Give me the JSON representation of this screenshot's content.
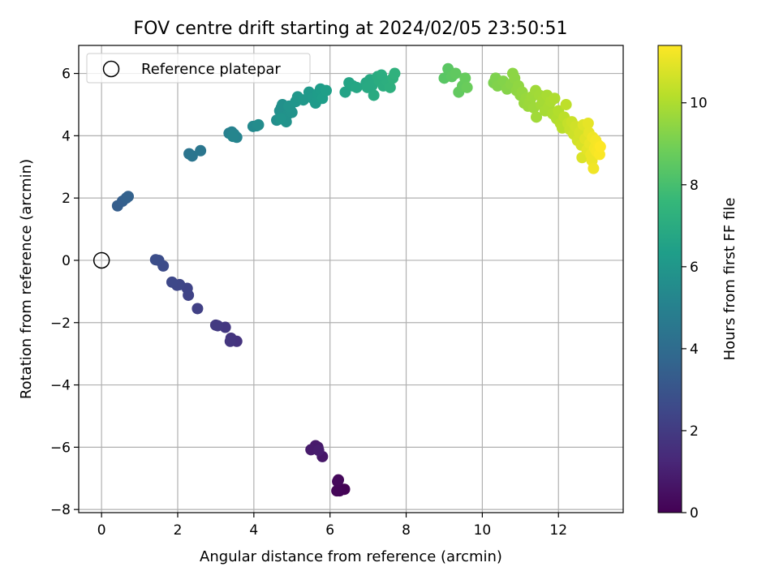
{
  "chart_data": {
    "type": "scatter",
    "title": "FOV centre drift starting at 2024/02/05 23:50:51",
    "xlabel": "Angular distance from reference (arcmin)",
    "ylabel": "Rotation from reference (arcmin)",
    "xlim": [
      -0.6,
      13.7
    ],
    "ylim": [
      -8.1,
      6.9
    ],
    "xticks": [
      0,
      2,
      4,
      6,
      8,
      10,
      12
    ],
    "yticks": [
      -8,
      -6,
      -4,
      -2,
      0,
      2,
      4,
      6
    ],
    "grid": true,
    "legend": {
      "placement": "top-left",
      "entries": [
        "Reference platepar"
      ]
    },
    "reference_point": {
      "x": 0,
      "y": 0,
      "label": "Reference platepar"
    },
    "colorbar": {
      "label": "Hours from first FF file",
      "colormap": "viridis",
      "range": [
        0,
        11.4
      ],
      "ticks": [
        0,
        2,
        4,
        6,
        8,
        10
      ]
    },
    "colormap_stops": [
      "#440154",
      "#482878",
      "#3e4989",
      "#31688e",
      "#26828e",
      "#1f9e89",
      "#35b779",
      "#6ece58",
      "#b5de2b",
      "#fde725"
    ],
    "points": [
      [
        6.38,
        -7.35,
        0.05
      ],
      [
        6.25,
        -7.4,
        0.1
      ],
      [
        6.18,
        -7.4,
        0.15
      ],
      [
        6.2,
        -7.1,
        0.2
      ],
      [
        6.22,
        -7.05,
        0.25
      ],
      [
        5.8,
        -6.3,
        0.7
      ],
      [
        5.68,
        -6.0,
        0.75
      ],
      [
        5.62,
        -5.95,
        0.8
      ],
      [
        5.5,
        -6.08,
        0.85
      ],
      [
        5.7,
        -6.1,
        0.9
      ],
      [
        3.55,
        -2.6,
        1.7
      ],
      [
        3.4,
        -2.5,
        1.75
      ],
      [
        3.38,
        -2.6,
        1.8
      ],
      [
        3.25,
        -2.15,
        1.85
      ],
      [
        3.05,
        -2.1,
        1.9
      ],
      [
        3.0,
        -2.08,
        1.95
      ],
      [
        2.52,
        -1.55,
        2.2
      ],
      [
        2.28,
        -1.12,
        2.3
      ],
      [
        2.25,
        -0.9,
        2.35
      ],
      [
        2.05,
        -0.78,
        2.4
      ],
      [
        1.98,
        -0.8,
        2.45
      ],
      [
        1.85,
        -0.7,
        2.5
      ],
      [
        1.62,
        -0.18,
        2.65
      ],
      [
        1.5,
        0.0,
        2.7
      ],
      [
        1.42,
        0.02,
        2.75
      ],
      [
        0.42,
        1.75,
        3.4
      ],
      [
        0.55,
        1.9,
        3.45
      ],
      [
        0.65,
        2.0,
        3.5
      ],
      [
        0.7,
        2.05,
        3.55
      ],
      [
        2.3,
        3.42,
        4.4
      ],
      [
        2.38,
        3.35,
        4.45
      ],
      [
        2.6,
        3.52,
        4.5
      ],
      [
        3.35,
        4.08,
        4.95
      ],
      [
        3.42,
        4.12,
        5.0
      ],
      [
        3.5,
        4.0,
        5.05
      ],
      [
        3.55,
        3.95,
        5.1
      ],
      [
        3.48,
        4.05,
        5.15
      ],
      [
        3.45,
        3.98,
        5.2
      ],
      [
        3.98,
        4.3,
        5.4
      ],
      [
        4.08,
        4.32,
        5.45
      ],
      [
        4.12,
        4.35,
        5.5
      ],
      [
        4.6,
        4.5,
        5.6
      ],
      [
        4.68,
        4.8,
        5.65
      ],
      [
        4.72,
        4.9,
        5.7
      ],
      [
        4.75,
        5.0,
        5.72
      ],
      [
        4.8,
        4.6,
        5.75
      ],
      [
        4.85,
        4.45,
        5.78
      ],
      [
        4.9,
        4.7,
        5.8
      ],
      [
        4.95,
        4.85,
        5.82
      ],
      [
        5.0,
        4.75,
        5.85
      ],
      [
        4.92,
        4.95,
        5.88
      ],
      [
        4.7,
        4.55,
        5.9
      ],
      [
        5.1,
        5.1,
        5.95
      ],
      [
        5.15,
        5.25,
        6.0
      ],
      [
        5.3,
        5.15,
        6.05
      ],
      [
        5.45,
        5.4,
        6.1
      ],
      [
        5.55,
        5.2,
        6.15
      ],
      [
        5.62,
        5.05,
        6.2
      ],
      [
        5.68,
        5.35,
        6.25
      ],
      [
        5.75,
        5.5,
        6.3
      ],
      [
        5.8,
        5.2,
        6.35
      ],
      [
        5.9,
        5.45,
        6.4
      ],
      [
        6.4,
        5.4,
        6.6
      ],
      [
        6.5,
        5.7,
        6.65
      ],
      [
        6.6,
        5.6,
        6.7
      ],
      [
        6.7,
        5.55,
        6.75
      ],
      [
        6.95,
        5.7,
        6.8
      ],
      [
        7.05,
        5.8,
        6.85
      ],
      [
        7.1,
        5.6,
        6.9
      ],
      [
        7.15,
        5.3,
        6.95
      ],
      [
        7.25,
        5.9,
        7.0
      ],
      [
        7.3,
        5.75,
        7.05
      ],
      [
        7.4,
        5.6,
        7.1
      ],
      [
        7.5,
        5.75,
        7.15
      ],
      [
        7.58,
        5.55,
        7.2
      ],
      [
        7.65,
        5.85,
        7.25
      ],
      [
        7.7,
        6.0,
        7.3
      ],
      [
        7.35,
        5.95,
        7.08
      ],
      [
        6.98,
        5.55,
        6.88
      ],
      [
        9.0,
        5.85,
        8.4
      ],
      [
        9.1,
        6.15,
        8.45
      ],
      [
        9.2,
        5.9,
        8.5
      ],
      [
        9.3,
        6.0,
        8.55
      ],
      [
        9.38,
        5.4,
        8.6
      ],
      [
        9.48,
        5.6,
        8.65
      ],
      [
        9.55,
        5.85,
        8.7
      ],
      [
        9.6,
        5.55,
        8.75
      ],
      [
        10.3,
        5.7,
        9.1
      ],
      [
        10.35,
        5.85,
        9.15
      ],
      [
        10.4,
        5.6,
        9.2
      ],
      [
        10.55,
        5.75,
        9.25
      ],
      [
        10.65,
        5.5,
        9.3
      ],
      [
        10.75,
        5.65,
        9.35
      ],
      [
        10.8,
        6.0,
        9.4
      ],
      [
        10.85,
        5.85,
        9.42
      ],
      [
        10.9,
        5.45,
        9.45
      ],
      [
        10.95,
        5.6,
        9.48
      ],
      [
        11.0,
        5.3,
        9.5
      ],
      [
        11.05,
        5.4,
        9.55
      ],
      [
        11.1,
        5.05,
        9.6
      ],
      [
        11.15,
        5.2,
        9.62
      ],
      [
        11.2,
        4.95,
        9.65
      ],
      [
        11.25,
        5.1,
        9.68
      ],
      [
        11.3,
        5.25,
        9.7
      ],
      [
        11.35,
        4.9,
        9.72
      ],
      [
        11.4,
        5.45,
        9.75
      ],
      [
        11.42,
        4.6,
        9.78
      ],
      [
        11.5,
        5.3,
        9.8
      ],
      [
        11.55,
        5.0,
        9.82
      ],
      [
        11.6,
        5.15,
        9.85
      ],
      [
        11.65,
        4.8,
        9.88
      ],
      [
        11.7,
        5.3,
        9.9
      ],
      [
        11.75,
        4.95,
        9.92
      ],
      [
        11.8,
        5.1,
        9.95
      ],
      [
        11.85,
        4.7,
        9.98
      ],
      [
        11.9,
        5.2,
        10.0
      ],
      [
        11.95,
        4.55,
        10.05
      ],
      [
        12.0,
        4.8,
        10.1
      ],
      [
        12.05,
        4.4,
        10.15
      ],
      [
        12.1,
        4.25,
        10.2
      ],
      [
        12.15,
        4.6,
        10.25
      ],
      [
        12.2,
        5.0,
        10.3
      ],
      [
        12.25,
        4.4,
        10.4
      ],
      [
        12.3,
        4.2,
        10.45
      ],
      [
        12.35,
        4.45,
        10.5
      ],
      [
        12.4,
        4.05,
        10.55
      ],
      [
        12.45,
        4.3,
        10.6
      ],
      [
        12.5,
        3.85,
        10.65
      ],
      [
        12.55,
        4.1,
        10.7
      ],
      [
        12.6,
        3.7,
        10.75
      ],
      [
        12.62,
        3.3,
        10.8
      ],
      [
        12.65,
        4.35,
        10.85
      ],
      [
        12.7,
        3.9,
        10.9
      ],
      [
        12.75,
        3.55,
        10.95
      ],
      [
        12.78,
        4.4,
        11.0
      ],
      [
        12.8,
        4.1,
        11.02
      ],
      [
        12.82,
        3.75,
        11.05
      ],
      [
        12.85,
        3.4,
        11.08
      ],
      [
        12.88,
        3.2,
        11.1
      ],
      [
        12.9,
        3.95,
        11.15
      ],
      [
        12.92,
        2.95,
        11.18
      ],
      [
        12.95,
        3.6,
        11.2
      ],
      [
        12.98,
        3.85,
        11.25
      ],
      [
        13.0,
        3.5,
        11.28
      ],
      [
        13.05,
        3.7,
        11.3
      ],
      [
        13.08,
        3.4,
        11.35
      ],
      [
        13.1,
        3.65,
        11.4
      ]
    ]
  }
}
